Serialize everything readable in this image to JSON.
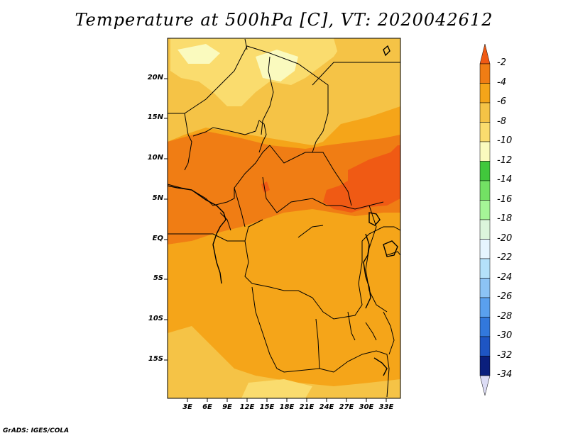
{
  "title": "Temperature at 500hPa [C], VT: 2020042612",
  "footer": "GrADS: IGES/COLA",
  "map": {
    "lat_labels": [
      "20N",
      "15N",
      "10N",
      "5N",
      "EQ",
      "5S",
      "10S",
      "15S"
    ],
    "lon_labels": [
      "3E",
      "6E",
      "9E",
      "12E",
      "15E",
      "18E",
      "21E",
      "24E",
      "27E",
      "30E",
      "33E"
    ]
  },
  "colorbar": {
    "labels": [
      "-2",
      "-4",
      "-6",
      "-8",
      "-10",
      "-12",
      "-14",
      "-16",
      "-18",
      "-20",
      "-22",
      "-24",
      "-26",
      "-28",
      "-30",
      "-32",
      "-34"
    ],
    "colors": [
      "#f05a14",
      "#f07d14",
      "#f5a519",
      "#f5c346",
      "#fadc6e",
      "#fafabe",
      "#41c83c",
      "#73e164",
      "#a5f597",
      "#dcf5dc",
      "#e6f5ff",
      "#b4e1fa",
      "#8cc3f5",
      "#5aa0ee",
      "#3278dc",
      "#1e55c3",
      "#0a1f7d",
      "#dcdcf5"
    ]
  },
  "colors": {
    "field_base": "#f5a519",
    "field_cool": "#fadc6e",
    "field_coldest": "#fafabe",
    "field_warm": "#f07d14",
    "field_hot": "#f05a14"
  }
}
